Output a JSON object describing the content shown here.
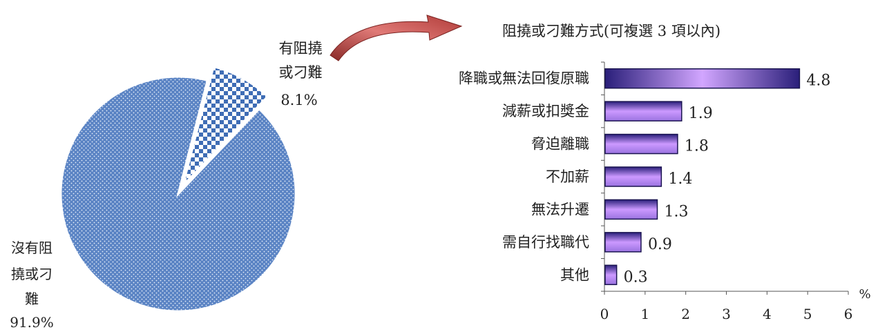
{
  "chart_data": [
    {
      "type": "pie",
      "slices": [
        {
          "label_lines": [
            "有阻撓",
            "或刁難"
          ],
          "value": 8.1,
          "value_label": "8.1%",
          "pattern": "checker"
        },
        {
          "label_lines": [
            "沒有阻",
            "撓或刁",
            "難"
          ],
          "value": 91.9,
          "value_label": "91.9%",
          "pattern": "dots"
        }
      ]
    },
    {
      "type": "bar",
      "orientation": "horizontal",
      "title": "阻撓或刁難方式(可複選 3 項以內)",
      "categories": [
        "降職或無法回復原職",
        "減薪或扣獎金",
        "脅迫離職",
        "不加薪",
        "無法升遷",
        "需自行找職代",
        "其他"
      ],
      "values": [
        4.8,
        1.9,
        1.8,
        1.4,
        1.3,
        0.9,
        0.3
      ],
      "unit": "%",
      "xlim": [
        0,
        6
      ],
      "xticks": [
        "0",
        "1",
        "2",
        "3",
        "4",
        "5",
        "6"
      ],
      "grid": false
    }
  ],
  "colors": {
    "pie_blue": "#5b84c4",
    "checker": "#3f6db5",
    "bar_dark": "#2a1f7a",
    "bar_light": "#cc99ff",
    "arrow": "#c0504d"
  }
}
